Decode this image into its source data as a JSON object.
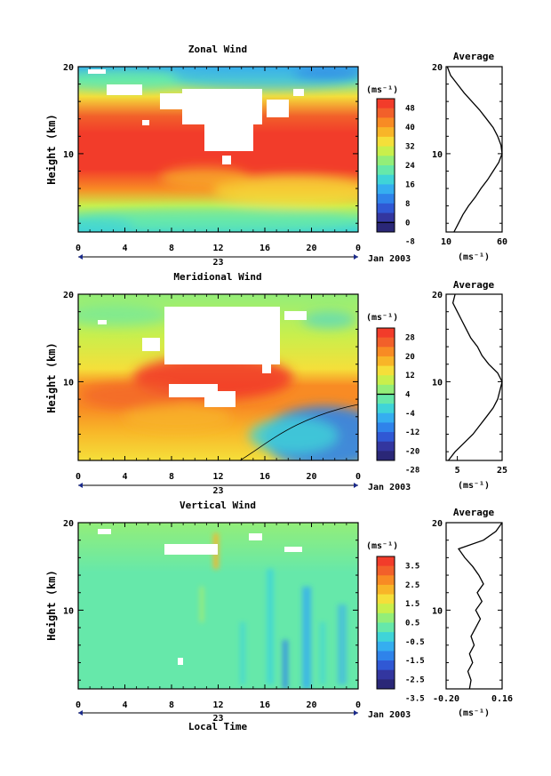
{
  "date_label": "Jan 2003",
  "xlabel": "Local Time",
  "cbar_unit": "(ms⁻¹)",
  "profile_unit": "(ms⁻¹)",
  "chart_data": [
    {
      "type": "heatmap",
      "title": "Zonal Wind",
      "ylabel": "Height (km)",
      "x_ticks": [
        "0",
        "4",
        "8",
        "12",
        "16",
        "20",
        "0"
      ],
      "day_label": "23",
      "y_ticks": [
        "10",
        "20"
      ],
      "ylim": [
        1,
        20
      ],
      "cbar": {
        "ticks": [
          "48",
          "40",
          "32",
          "24",
          "16",
          "8",
          "0",
          "-8"
        ],
        "zero_line_index": 6,
        "colors": [
          "#f23c2a",
          "#f2602a",
          "#f88b24",
          "#f8b528",
          "#f5df3a",
          "#c9ef4c",
          "#93ee79",
          "#66e8aa",
          "#3fd4d8",
          "#35aef0",
          "#2f83ea",
          "#3058d4",
          "#33369f",
          "#2a2777"
        ]
      },
      "profile": {
        "title": "Average",
        "xlim": [
          10,
          60
        ],
        "x_ticks": [
          "10",
          "60"
        ],
        "y_ticks": [
          "10",
          "20"
        ],
        "points": [
          [
            17,
            1
          ],
          [
            21,
            2
          ],
          [
            25,
            3
          ],
          [
            30,
            4
          ],
          [
            36,
            5
          ],
          [
            41,
            6
          ],
          [
            47,
            7
          ],
          [
            52,
            8
          ],
          [
            57,
            9
          ],
          [
            60,
            10
          ],
          [
            59,
            11
          ],
          [
            56,
            12
          ],
          [
            52,
            13
          ],
          [
            46,
            14
          ],
          [
            40,
            15
          ],
          [
            33,
            16
          ],
          [
            26,
            17
          ],
          [
            20,
            18
          ],
          [
            14,
            19
          ],
          [
            11,
            20
          ]
        ]
      }
    },
    {
      "type": "heatmap",
      "title": "Meridional Wind",
      "ylabel": "Height (km)",
      "x_ticks": [
        "0",
        "4",
        "8",
        "12",
        "16",
        "20",
        "0"
      ],
      "day_label": "23",
      "y_ticks": [
        "10",
        "20"
      ],
      "ylim": [
        1,
        20
      ],
      "cbar": {
        "ticks": [
          "28",
          "20",
          "12",
          "4",
          "-4",
          "-12",
          "-20",
          "-28"
        ],
        "zero_line_index": 3,
        "colors": [
          "#f23c2a",
          "#f2602a",
          "#f88b24",
          "#f8b528",
          "#f5df3a",
          "#c9ef4c",
          "#93ee79",
          "#66e8aa",
          "#3fd4d8",
          "#35aef0",
          "#2f83ea",
          "#3058d4",
          "#33369f",
          "#2a2777"
        ]
      },
      "profile": {
        "title": "Average",
        "xlim": [
          0,
          25
        ],
        "x_ticks": [
          "5",
          "25"
        ],
        "y_ticks": [
          "10",
          "20"
        ],
        "points": [
          [
            1,
            1
          ],
          [
            4,
            2
          ],
          [
            8,
            3
          ],
          [
            12,
            4
          ],
          [
            15,
            5
          ],
          [
            18,
            6
          ],
          [
            21,
            7
          ],
          [
            23,
            8
          ],
          [
            24,
            9
          ],
          [
            25,
            10
          ],
          [
            23,
            11
          ],
          [
            19,
            12
          ],
          [
            16,
            13
          ],
          [
            14,
            14
          ],
          [
            11,
            15
          ],
          [
            9,
            16
          ],
          [
            7,
            17
          ],
          [
            5,
            18
          ],
          [
            3,
            19
          ],
          [
            4,
            20
          ]
        ]
      }
    },
    {
      "type": "heatmap",
      "title": "Vertical Wind",
      "ylabel": "Height (km)",
      "x_ticks": [
        "0",
        "4",
        "8",
        "12",
        "16",
        "20",
        "0"
      ],
      "day_label": "23",
      "y_ticks": [
        "10",
        "20"
      ],
      "ylim": [
        1,
        20
      ],
      "cbar": {
        "ticks": [
          "3.5",
          "2.5",
          "1.5",
          "0.5",
          "-0.5",
          "-1.5",
          "-2.5",
          "-3.5"
        ],
        "zero_line_index": -1,
        "colors": [
          "#f23c2a",
          "#f2602a",
          "#f88b24",
          "#f8b528",
          "#f5df3a",
          "#c9ef4c",
          "#93ee79",
          "#66e8aa",
          "#3fd4d8",
          "#35aef0",
          "#2f83ea",
          "#3058d4",
          "#33369f",
          "#2a2777"
        ]
      },
      "profile": {
        "title": "Average",
        "xlim": [
          -0.2,
          0.16
        ],
        "x_ticks": [
          "-0.20",
          "0.16"
        ],
        "y_ticks": [
          "10",
          "20"
        ],
        "points": [
          [
            -0.05,
            1
          ],
          [
            -0.04,
            2
          ],
          [
            -0.06,
            3
          ],
          [
            -0.03,
            4
          ],
          [
            -0.05,
            5
          ],
          [
            -0.02,
            6
          ],
          [
            -0.04,
            7
          ],
          [
            -0.01,
            8
          ],
          [
            0.02,
            9
          ],
          [
            -0.01,
            10
          ],
          [
            0.03,
            11
          ],
          [
            0.0,
            12
          ],
          [
            0.04,
            13
          ],
          [
            0.01,
            14
          ],
          [
            -0.03,
            15
          ],
          [
            -0.08,
            16
          ],
          [
            -0.12,
            17
          ],
          [
            0.04,
            18
          ],
          [
            0.12,
            19
          ],
          [
            0.16,
            20
          ]
        ]
      }
    }
  ]
}
